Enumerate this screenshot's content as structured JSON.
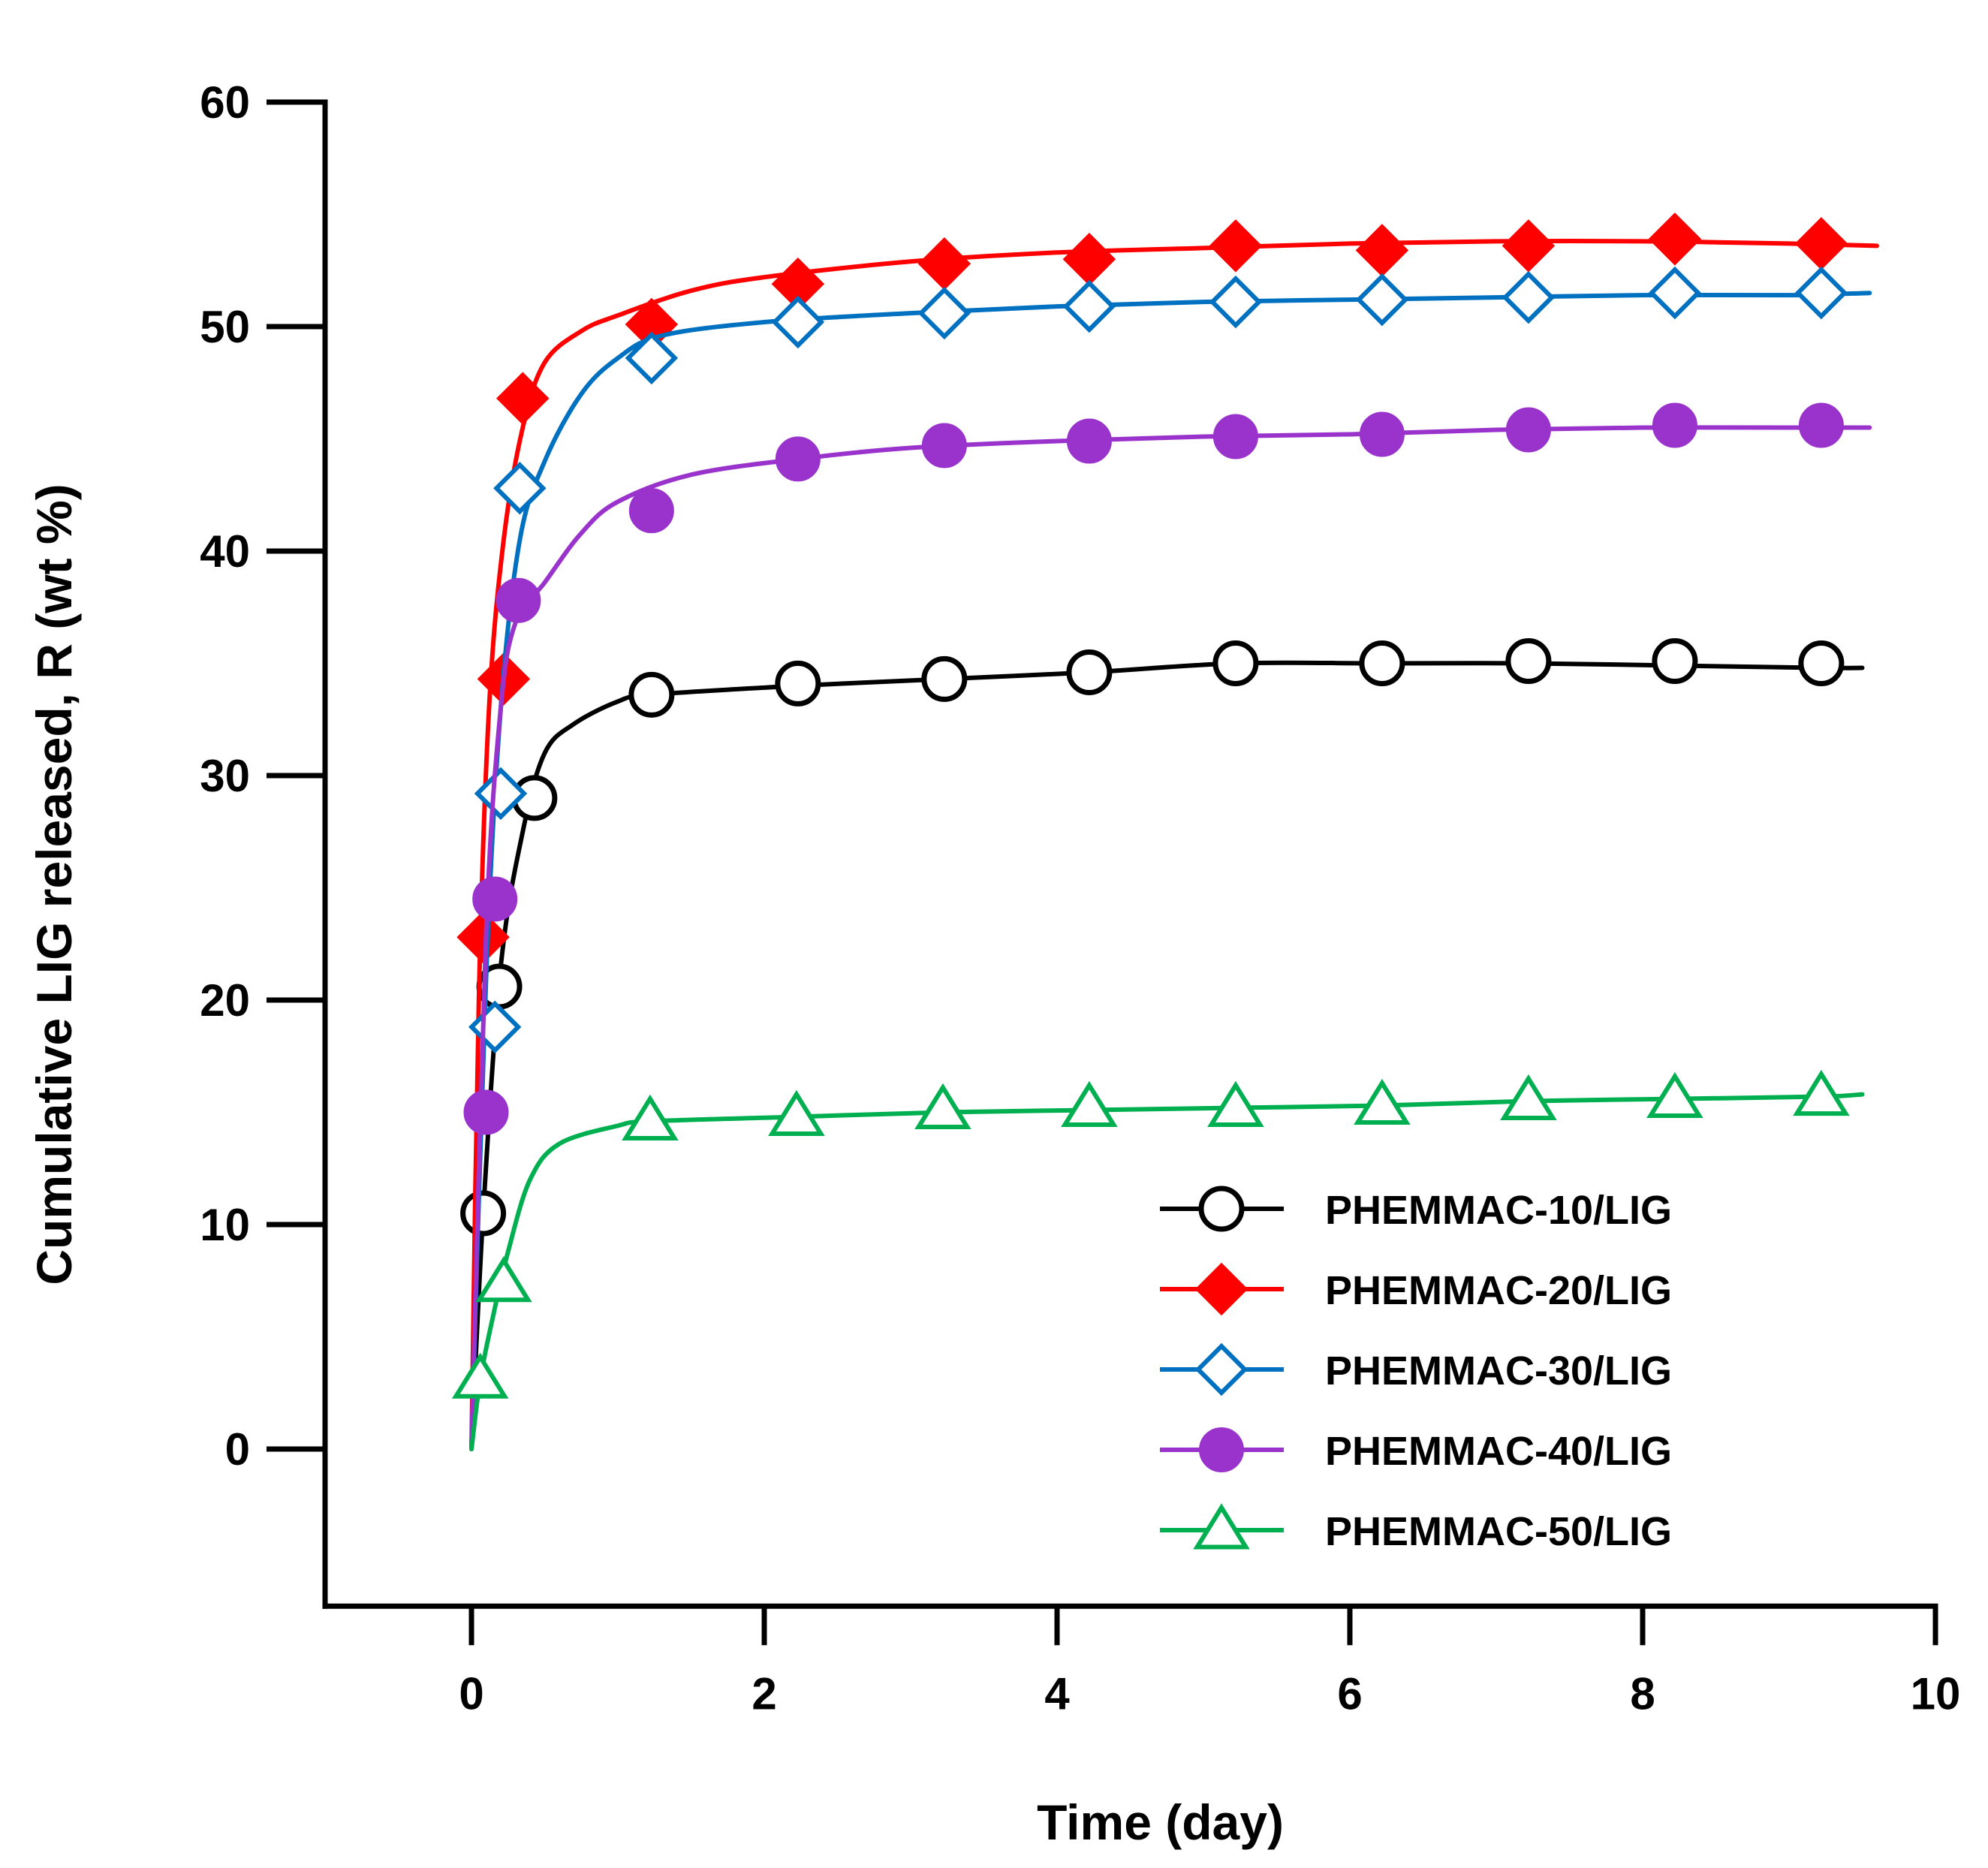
{
  "chart_data": {
    "type": "line",
    "title": "",
    "xlabel": "Time (day)",
    "ylabel": "Cumulative LIG released, R (wt %)",
    "xlim": [
      -1,
      10
    ],
    "ylim": [
      -7,
      60
    ],
    "xticks": [
      0,
      2,
      4,
      6,
      8,
      10
    ],
    "yticks": [
      0,
      10,
      20,
      30,
      40,
      50,
      60
    ],
    "xtick_labels": [
      "0",
      "2",
      "4",
      "6",
      "8",
      "10"
    ],
    "ytick_labels": [
      "0",
      "10",
      "20",
      "30",
      "40",
      "50",
      "60"
    ],
    "grid": false,
    "legend_position": "bottom-right",
    "series": [
      {
        "name": "PHEMMAC-10/LIG",
        "color": "#000000",
        "marker": "circle-open",
        "points": [
          [
            0.08,
            10.5
          ],
          [
            0.19,
            20.6
          ],
          [
            0.43,
            29.0
          ],
          [
            1.23,
            33.6
          ],
          [
            2.23,
            34.1
          ],
          [
            3.23,
            34.3
          ],
          [
            4.22,
            34.6
          ],
          [
            5.22,
            35.0
          ],
          [
            6.22,
            35.0
          ],
          [
            7.22,
            35.1
          ],
          [
            8.22,
            35.1
          ],
          [
            9.22,
            35.0
          ]
        ],
        "fit": [
          [
            0,
            0
          ],
          [
            0.08,
            10.5
          ],
          [
            0.2,
            21.5
          ],
          [
            0.35,
            27.5
          ],
          [
            0.5,
            31.0
          ],
          [
            0.7,
            32.3
          ],
          [
            1.0,
            33.3
          ],
          [
            1.23,
            33.6
          ],
          [
            2.23,
            34.0
          ],
          [
            3.23,
            34.3
          ],
          [
            4.22,
            34.6
          ],
          [
            5.22,
            35.0
          ],
          [
            6.22,
            35.0
          ],
          [
            7.22,
            35.0
          ],
          [
            8.22,
            34.9
          ],
          [
            9.22,
            34.8
          ],
          [
            9.5,
            34.8
          ]
        ]
      },
      {
        "name": "PHEMMAC-20/LIG",
        "color": "#ff0000",
        "marker": "diamond-filled",
        "points": [
          [
            0.08,
            22.8
          ],
          [
            0.22,
            34.3
          ],
          [
            0.35,
            46.8
          ],
          [
            1.23,
            50.1
          ],
          [
            2.23,
            51.9
          ],
          [
            3.23,
            52.8
          ],
          [
            4.22,
            53.0
          ],
          [
            5.22,
            53.6
          ],
          [
            6.22,
            53.4
          ],
          [
            7.22,
            53.6
          ],
          [
            8.22,
            53.9
          ],
          [
            9.22,
            53.7
          ]
        ],
        "fit": [
          [
            0,
            0
          ],
          [
            0.05,
            20.0
          ],
          [
            0.12,
            33.0
          ],
          [
            0.22,
            40.5
          ],
          [
            0.35,
            45.5
          ],
          [
            0.5,
            48.4
          ],
          [
            0.75,
            49.8
          ],
          [
            1.0,
            50.5
          ],
          [
            1.5,
            51.6
          ],
          [
            2.0,
            52.2
          ],
          [
            3.0,
            52.9
          ],
          [
            4.0,
            53.3
          ],
          [
            5.0,
            53.5
          ],
          [
            6.0,
            53.7
          ],
          [
            7.0,
            53.8
          ],
          [
            8.0,
            53.8
          ],
          [
            9.0,
            53.7
          ],
          [
            9.6,
            53.6
          ]
        ]
      },
      {
        "name": "PHEMMAC-30/LIG",
        "color": "#0070c0",
        "marker": "diamond-open",
        "points": [
          [
            0.16,
            18.8
          ],
          [
            0.2,
            29.2
          ],
          [
            0.33,
            42.8
          ],
          [
            1.23,
            48.6
          ],
          [
            2.23,
            50.2
          ],
          [
            3.23,
            50.6
          ],
          [
            4.22,
            50.9
          ],
          [
            5.22,
            51.1
          ],
          [
            6.22,
            51.2
          ],
          [
            7.22,
            51.3
          ],
          [
            8.22,
            51.5
          ],
          [
            9.22,
            51.5
          ]
        ],
        "fit": [
          [
            0,
            0
          ],
          [
            0.1,
            21.0
          ],
          [
            0.2,
            33.0
          ],
          [
            0.33,
            40.5
          ],
          [
            0.5,
            44.0
          ],
          [
            0.75,
            47.0
          ],
          [
            1.0,
            48.6
          ],
          [
            1.3,
            49.6
          ],
          [
            2.0,
            50.2
          ],
          [
            3.0,
            50.6
          ],
          [
            4.0,
            50.9
          ],
          [
            5.0,
            51.1
          ],
          [
            6.0,
            51.2
          ],
          [
            7.0,
            51.3
          ],
          [
            8.0,
            51.4
          ],
          [
            9.0,
            51.4
          ],
          [
            9.55,
            51.5
          ]
        ]
      },
      {
        "name": "PHEMMAC-40/LIG",
        "color": "#9933cc",
        "marker": "circle-filled",
        "points": [
          [
            0.1,
            15.0
          ],
          [
            0.16,
            24.5
          ],
          [
            0.32,
            37.8
          ],
          [
            1.23,
            41.8
          ],
          [
            2.23,
            44.1
          ],
          [
            3.23,
            44.7
          ],
          [
            4.22,
            44.9
          ],
          [
            5.22,
            45.1
          ],
          [
            6.22,
            45.2
          ],
          [
            7.22,
            45.4
          ],
          [
            8.22,
            45.6
          ],
          [
            9.22,
            45.6
          ]
        ],
        "fit": [
          [
            0,
            0
          ],
          [
            0.1,
            23.0
          ],
          [
            0.2,
            33.0
          ],
          [
            0.3,
            36.8
          ],
          [
            0.5,
            38.6
          ],
          [
            0.75,
            40.8
          ],
          [
            1.0,
            42.2
          ],
          [
            1.5,
            43.4
          ],
          [
            2.23,
            44.1
          ],
          [
            3.0,
            44.6
          ],
          [
            4.0,
            44.9
          ],
          [
            5.0,
            45.1
          ],
          [
            6.0,
            45.2
          ],
          [
            7.0,
            45.4
          ],
          [
            8.0,
            45.5
          ],
          [
            9.0,
            45.5
          ],
          [
            9.55,
            45.5
          ]
        ]
      },
      {
        "name": "PHEMMAC-50/LIG",
        "color": "#00b050",
        "marker": "triangle-open",
        "points": [
          [
            0.06,
            3.1
          ],
          [
            0.22,
            7.4
          ],
          [
            1.22,
            14.6
          ],
          [
            2.22,
            14.8
          ],
          [
            3.22,
            15.1
          ],
          [
            4.22,
            15.2
          ],
          [
            5.22,
            15.2
          ],
          [
            6.22,
            15.3
          ],
          [
            7.22,
            15.5
          ],
          [
            8.22,
            15.6
          ],
          [
            9.22,
            15.7
          ]
        ],
        "fit": [
          [
            0,
            0
          ],
          [
            0.06,
            3.1
          ],
          [
            0.15,
            6.0
          ],
          [
            0.25,
            8.8
          ],
          [
            0.4,
            12.0
          ],
          [
            0.6,
            13.6
          ],
          [
            1.0,
            14.4
          ],
          [
            1.22,
            14.6
          ],
          [
            2.22,
            14.8
          ],
          [
            3.22,
            15.0
          ],
          [
            4.22,
            15.1
          ],
          [
            5.22,
            15.2
          ],
          [
            6.22,
            15.3
          ],
          [
            7.22,
            15.5
          ],
          [
            8.22,
            15.6
          ],
          [
            9.22,
            15.7
          ],
          [
            9.5,
            15.8
          ]
        ]
      }
    ]
  }
}
